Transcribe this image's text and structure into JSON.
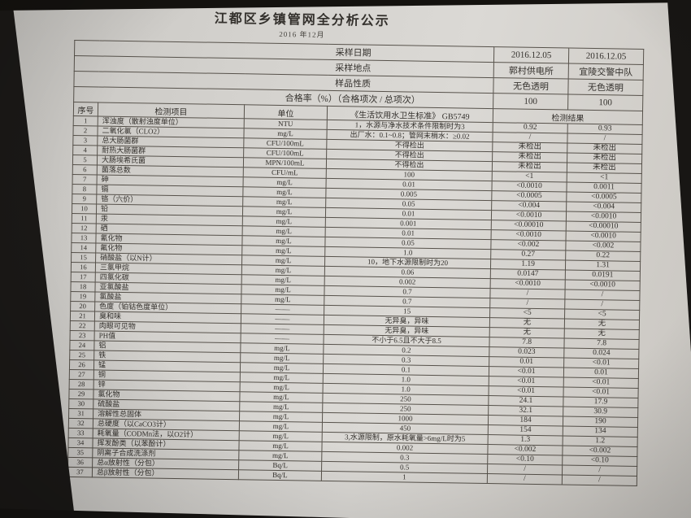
{
  "title": "江都区乡镇管网全分析公示",
  "subtitle": "2016 年12月",
  "colors": {
    "paper": "#d6d4d0",
    "background": "#1a1816",
    "ink": "#34312d",
    "table_line": "#57524b"
  },
  "meta": {
    "rows": [
      {
        "label": "采样日期",
        "values": [
          "2016.12.05",
          "2016.12.05"
        ]
      },
      {
        "label": "采样地点",
        "values": [
          "郭村供电所",
          "宜陵交警中队"
        ]
      },
      {
        "label": "样品性质",
        "values": [
          "无色透明",
          "无色透明"
        ]
      },
      {
        "label": "合格率（%）（合格项次 / 总项次）",
        "values": [
          "100",
          "100"
        ]
      }
    ]
  },
  "table": {
    "headers": {
      "no": "序号",
      "item": "检测项目",
      "unit": "单位",
      "standard": "《生活饮用水卫生标准》 GB5749",
      "result": "检测结果"
    },
    "rows": [
      {
        "no": "1",
        "item": "浑浊度（散射浊度单位）",
        "unit": "NTU",
        "std": "1，水源与净水技术条件限制时为3",
        "r1": "0.92",
        "r2": "0.93"
      },
      {
        "no": "2",
        "item": "二氧化氯（CLO2）",
        "unit": "mg/L",
        "std": "出厂水：0.1~0.8；管网末梢水：≥0.02",
        "r1": "/",
        "r2": "/"
      },
      {
        "no": "3",
        "item": "总大肠菌群",
        "unit": "CFU/100mL",
        "std": "不得检出",
        "r1": "未检出",
        "r2": "未检出"
      },
      {
        "no": "4",
        "item": "耐热大肠菌群",
        "unit": "CFU/100mL",
        "std": "不得检出",
        "r1": "未检出",
        "r2": "未检出"
      },
      {
        "no": "5",
        "item": "大肠埃希氏菌",
        "unit": "MPN/100mL",
        "std": "不得检出",
        "r1": "未检出",
        "r2": "未检出"
      },
      {
        "no": "6",
        "item": "菌落总数",
        "unit": "CFU/mL",
        "std": "100",
        "r1": "<1",
        "r2": "<1"
      },
      {
        "no": "7",
        "item": "砷",
        "unit": "mg/L",
        "std": "0.01",
        "r1": "<0.0010",
        "r2": "0.0011"
      },
      {
        "no": "8",
        "item": "镉",
        "unit": "mg/L",
        "std": "0.005",
        "r1": "<0.0005",
        "r2": "<0.0005"
      },
      {
        "no": "9",
        "item": "铬（六价）",
        "unit": "mg/L",
        "std": "0.05",
        "r1": "<0.004",
        "r2": "<0.004"
      },
      {
        "no": "10",
        "item": "铅",
        "unit": "mg/L",
        "std": "0.01",
        "r1": "<0.0010",
        "r2": "<0.0010"
      },
      {
        "no": "11",
        "item": "汞",
        "unit": "mg/L",
        "std": "0.001",
        "r1": "<0.00010",
        "r2": "<0.00010"
      },
      {
        "no": "12",
        "item": "硒",
        "unit": "mg/L",
        "std": "0.01",
        "r1": "<0.0010",
        "r2": "<0.0010"
      },
      {
        "no": "13",
        "item": "氰化物",
        "unit": "mg/L",
        "std": "0.05",
        "r1": "<0.002",
        "r2": "<0.002"
      },
      {
        "no": "14",
        "item": "氟化物",
        "unit": "mg/L",
        "std": "1.0",
        "r1": "0.27",
        "r2": "0.22"
      },
      {
        "no": "15",
        "item": "硝酸盐（以N计）",
        "unit": "mg/L",
        "std": "10，地下水源限制时为20",
        "r1": "1.19",
        "r2": "1.31"
      },
      {
        "no": "16",
        "item": "三氯甲烷",
        "unit": "mg/L",
        "std": "0.06",
        "r1": "0.0147",
        "r2": "0.0191"
      },
      {
        "no": "17",
        "item": "四氯化碳",
        "unit": "mg/L",
        "std": "0.002",
        "r1": "<0.0010",
        "r2": "<0.0010"
      },
      {
        "no": "18",
        "item": "亚氯酸盐",
        "unit": "mg/L",
        "std": "0.7",
        "r1": "/",
        "r2": "/"
      },
      {
        "no": "19",
        "item": "氯酸盐",
        "unit": "mg/L",
        "std": "0.7",
        "r1": "/",
        "r2": "/"
      },
      {
        "no": "20",
        "item": "色度（铂钴色度单位）",
        "unit": "——",
        "std": "15",
        "r1": "<5",
        "r2": "<5"
      },
      {
        "no": "21",
        "item": "臭和味",
        "unit": "——",
        "std": "无异臭，异味",
        "r1": "无",
        "r2": "无"
      },
      {
        "no": "22",
        "item": "肉眼可见物",
        "unit": "——",
        "std": "无异臭，异味",
        "r1": "无",
        "r2": "无"
      },
      {
        "no": "23",
        "item": "PH值",
        "unit": "——",
        "std": "不小于6.5且不大于8.5",
        "r1": "7.8",
        "r2": "7.8"
      },
      {
        "no": "24",
        "item": "铝",
        "unit": "mg/L",
        "std": "0.2",
        "r1": "0.023",
        "r2": "0.024"
      },
      {
        "no": "25",
        "item": "铁",
        "unit": "mg/L",
        "std": "0.3",
        "r1": "0.01",
        "r2": "<0.01"
      },
      {
        "no": "26",
        "item": "锰",
        "unit": "mg/L",
        "std": "0.1",
        "r1": "<0.01",
        "r2": "0.01"
      },
      {
        "no": "27",
        "item": "铜",
        "unit": "mg/L",
        "std": "1.0",
        "r1": "<0.01",
        "r2": "<0.01"
      },
      {
        "no": "28",
        "item": "锌",
        "unit": "mg/L",
        "std": "1.0",
        "r1": "<0.01",
        "r2": "<0.01"
      },
      {
        "no": "29",
        "item": "氯化物",
        "unit": "mg/L",
        "std": "250",
        "r1": "24.1",
        "r2": "17.9"
      },
      {
        "no": "30",
        "item": "硫酸盐",
        "unit": "mg/L",
        "std": "250",
        "r1": "32.1",
        "r2": "30.9"
      },
      {
        "no": "31",
        "item": "溶解性总固体",
        "unit": "mg/L",
        "std": "1000",
        "r1": "184",
        "r2": "190"
      },
      {
        "no": "32",
        "item": "总硬度（以CaCO3计）",
        "unit": "mg/L",
        "std": "450",
        "r1": "154",
        "r2": "134"
      },
      {
        "no": "33",
        "item": "耗氧量（CODMn法，以O2计）",
        "unit": "mg/L",
        "std": "3,水源限制，原水耗氧量>6mg/L时为5",
        "r1": "1.3",
        "r2": "1.2"
      },
      {
        "no": "34",
        "item": "挥发酚类（以苯酚计）",
        "unit": "mg/L",
        "std": "0.002",
        "r1": "<0.002",
        "r2": "<0.002"
      },
      {
        "no": "35",
        "item": "阴离子合成洗涤剂",
        "unit": "mg/L",
        "std": "0.3",
        "r1": "<0.10",
        "r2": "<0.10"
      },
      {
        "no": "36",
        "item": "总α放射性（分包）",
        "unit": "Bq/L",
        "std": "0.5",
        "r1": "/",
        "r2": "/"
      },
      {
        "no": "37",
        "item": "总β放射性（分包）",
        "unit": "Bq/L",
        "std": "1",
        "r1": "/",
        "r2": "/"
      }
    ]
  }
}
